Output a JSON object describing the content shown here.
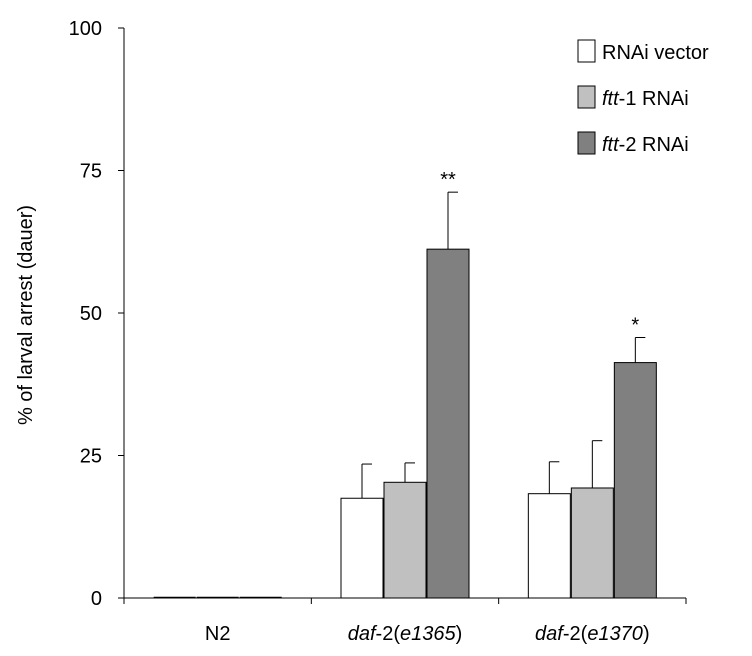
{
  "chart_data": {
    "type": "bar",
    "ylabel": "% of larval arrest (dauer)",
    "xlabel": "",
    "ylim": [
      0,
      100
    ],
    "yticks": [
      "0",
      "25",
      "50",
      "75",
      "100"
    ],
    "categories": [
      {
        "label": [
          {
            "text": "N2",
            "italic": false
          }
        ]
      },
      {
        "label": [
          {
            "text": "daf",
            "italic": true
          },
          {
            "text": "-2(",
            "italic": false
          },
          {
            "text": "e1365",
            "italic": true
          },
          {
            "text": ")",
            "italic": false
          }
        ]
      },
      {
        "label": [
          {
            "text": "daf",
            "italic": true
          },
          {
            "text": "-2(",
            "italic": false
          },
          {
            "text": "e1370",
            "italic": true
          },
          {
            "text": ")",
            "italic": false
          }
        ]
      }
    ],
    "series": [
      {
        "name": "RNAi vector",
        "name_parts": [
          {
            "text": "RNAi vector",
            "italic": false
          }
        ],
        "color": "#ffffff",
        "values": [
          0,
          17.5,
          18.3
        ],
        "errors": [
          0,
          6,
          5.6
        ]
      },
      {
        "name": "ftt-1 RNAi",
        "name_parts": [
          {
            "text": "ftt",
            "italic": true
          },
          {
            "text": "-1 RNAi",
            "italic": false
          }
        ],
        "color": "#c0c0c0",
        "values": [
          0,
          20.3,
          19.3
        ],
        "errors": [
          0,
          3.4,
          8.3
        ]
      },
      {
        "name": "ftt-2 RNAi",
        "name_parts": [
          {
            "text": "ftt",
            "italic": true
          },
          {
            "text": "-2 RNAi",
            "italic": false
          }
        ],
        "color": "#808080",
        "values": [
          0,
          61.2,
          41.3
        ],
        "errors": [
          0,
          10,
          4.4
        ]
      }
    ],
    "annotations": [
      {
        "category": 1,
        "series": 2,
        "text": "**"
      },
      {
        "category": 2,
        "series": 2,
        "text": "*"
      }
    ],
    "legend": "top-right",
    "grid": false
  }
}
